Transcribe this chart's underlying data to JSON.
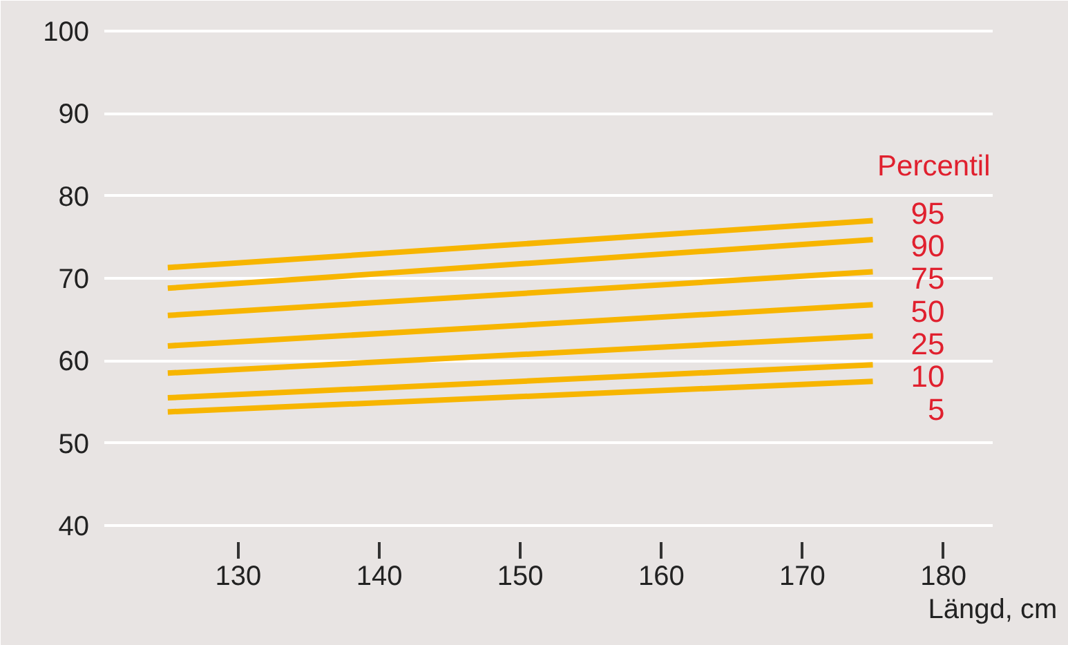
{
  "chart_data": {
    "type": "line",
    "xlabel": "Längd, cm",
    "legend_title": "Percentil",
    "x": [
      125,
      175
    ],
    "series": [
      {
        "name": "95",
        "color": "#f7b500",
        "values": [
          71.3,
          77.0
        ]
      },
      {
        "name": "90",
        "color": "#f7b500",
        "values": [
          68.8,
          74.7
        ]
      },
      {
        "name": "75",
        "color": "#f7b500",
        "values": [
          65.5,
          70.8
        ]
      },
      {
        "name": "50",
        "color": "#f7b500",
        "values": [
          61.8,
          66.8
        ]
      },
      {
        "name": "25",
        "color": "#f7b500",
        "values": [
          58.5,
          63.0
        ]
      },
      {
        "name": "10",
        "color": "#f7b500",
        "values": [
          55.5,
          59.5
        ]
      },
      {
        "name": "5",
        "color": "#f7b500",
        "values": [
          53.8,
          57.5
        ]
      }
    ],
    "xlim": [
      120.5,
      183.5
    ],
    "ylim": [
      38,
      102
    ],
    "xticks": [
      130,
      140,
      150,
      160,
      170,
      180
    ],
    "yticks": [
      40,
      50,
      60,
      70,
      80,
      90,
      100
    ],
    "grid": "y",
    "marker": "none",
    "line_style": "solid"
  }
}
